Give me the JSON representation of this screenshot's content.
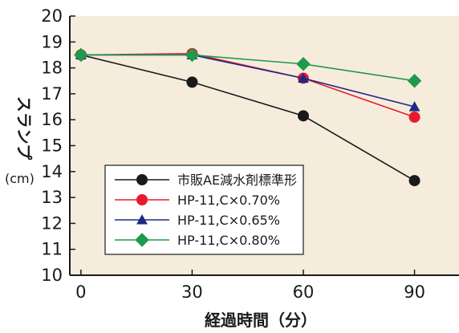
{
  "chart_data": {
    "type": "line",
    "title": "",
    "xlabel": "経過時間（分）",
    "ylabel": "スランプ",
    "ylabel_unit": "(cm)",
    "x": [
      0,
      30,
      60,
      90
    ],
    "x_ticks": [
      "0",
      "30",
      "60",
      "90"
    ],
    "xlim": [
      -3,
      102
    ],
    "ylim": [
      10,
      20
    ],
    "y_ticks": [
      "10",
      "11",
      "12",
      "13",
      "14",
      "15",
      "16",
      "17",
      "18",
      "19",
      "20"
    ],
    "grid": false,
    "plot_background": "#f6ecdc",
    "legend_position": "bottom-left",
    "series": [
      {
        "name": "市販AE減水剤標準形",
        "values": [
          18.5,
          17.45,
          16.15,
          13.65
        ],
        "color": "#1a1a1a",
        "marker": "circle"
      },
      {
        "name": "HP-11,C×0.70%",
        "values": [
          18.5,
          18.55,
          17.6,
          16.1
        ],
        "color": "#e8192c",
        "marker": "circle"
      },
      {
        "name": "HP-11,C×0.65%",
        "values": [
          18.5,
          18.5,
          17.6,
          16.5
        ],
        "color": "#1c2a86",
        "marker": "triangle"
      },
      {
        "name": "HP-11,C×0.80%",
        "values": [
          18.5,
          18.5,
          18.15,
          17.5
        ],
        "color": "#1f9a4a",
        "marker": "diamond"
      }
    ]
  }
}
